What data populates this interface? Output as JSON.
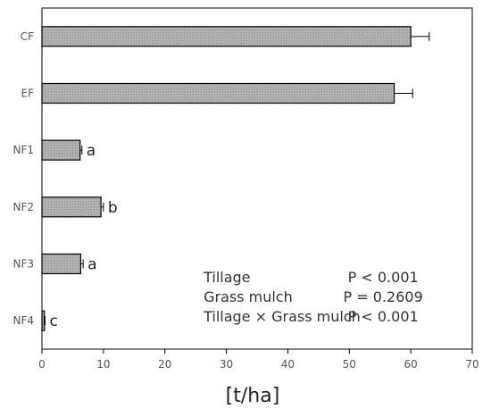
{
  "chart_data": {
    "type": "bar",
    "orientation": "horizontal",
    "categories": [
      "CF",
      "EF",
      "NF1",
      "NF2",
      "NF3",
      "NF4"
    ],
    "values": [
      60.0,
      57.3,
      6.2,
      9.6,
      6.3,
      0.4
    ],
    "errors": [
      3.0,
      3.0,
      0.3,
      0.4,
      0.4,
      0.1
    ],
    "letters": [
      "",
      "",
      "a",
      "b",
      "a",
      "c"
    ],
    "xlabel": "[t/ha]",
    "ylabel": "",
    "xlim": [
      0,
      70
    ],
    "xticks": [
      0,
      10,
      20,
      30,
      40,
      50,
      60,
      70
    ],
    "grid": false,
    "bar_color": "#aaaaaa",
    "bar_edge_color": "#000000",
    "annotations": [
      {
        "factor": "Tillage",
        "p": "P < 0.001"
      },
      {
        "factor": "Grass mulch",
        "p": "P = 0.2609"
      },
      {
        "factor": "Tillage × Grass mulch",
        "p": "P < 0.001"
      }
    ]
  }
}
